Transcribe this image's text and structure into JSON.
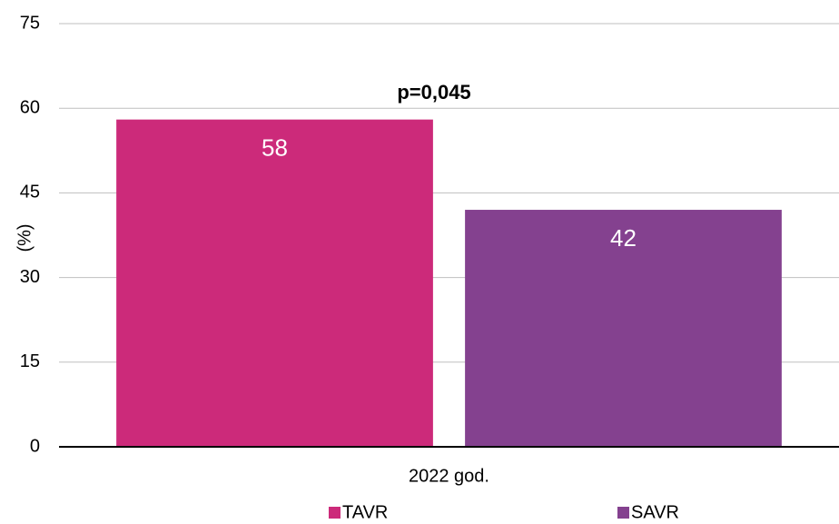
{
  "chart_data": {
    "type": "bar",
    "annotation": "p=0,045",
    "y_label": "(%)",
    "categories": [
      "2022 god."
    ],
    "series": [
      {
        "name": "TAVR",
        "color": "#cc2a7a",
        "values": [
          58
        ]
      },
      {
        "name": "SAVR",
        "color": "#84418f",
        "values": [
          42
        ]
      }
    ],
    "ylim": [
      0,
      75
    ],
    "yticks": [
      0,
      15,
      30,
      45,
      60,
      75
    ],
    "grid": true,
    "legend": "bottom"
  }
}
